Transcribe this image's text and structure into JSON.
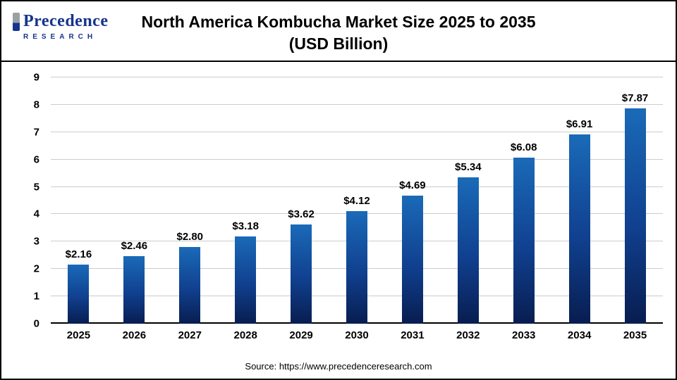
{
  "logo": {
    "name": "Precedence",
    "sub": "RESEARCH"
  },
  "header": {
    "title_line1": "North America Kombucha Market Size 2025 to 2035",
    "title_line2": "(USD Billion)"
  },
  "source": "Source: https://www.precedenceresearch.com",
  "colors": {
    "bar_top": "#1a6ab8",
    "bar_mid": "#10408f",
    "bar_bottom": "#081d50",
    "gridline": "#cccccc",
    "axis": "#000000",
    "logo_blue": "#16338e"
  },
  "chart_data": {
    "type": "bar",
    "title": "North America Kombucha Market Size 2025 to 2035 (USD Billion)",
    "categories": [
      "2025",
      "2026",
      "2027",
      "2028",
      "2029",
      "2030",
      "2031",
      "2032",
      "2033",
      "2034",
      "2035"
    ],
    "values": [
      2.16,
      2.46,
      2.8,
      3.18,
      3.62,
      4.12,
      4.69,
      5.34,
      6.08,
      6.91,
      7.87
    ],
    "value_labels": [
      "$2.16",
      "$2.46",
      "$2.80",
      "$3.18",
      "$3.62",
      "$4.12",
      "$4.69",
      "$5.34",
      "$6.08",
      "$6.91",
      "$7.87"
    ],
    "xlabel": "",
    "ylabel": "",
    "ylim": [
      0,
      9
    ],
    "yticks": [
      0,
      1,
      2,
      3,
      4,
      5,
      6,
      7,
      8,
      9
    ],
    "grid": "horizontal",
    "legend": "none"
  }
}
